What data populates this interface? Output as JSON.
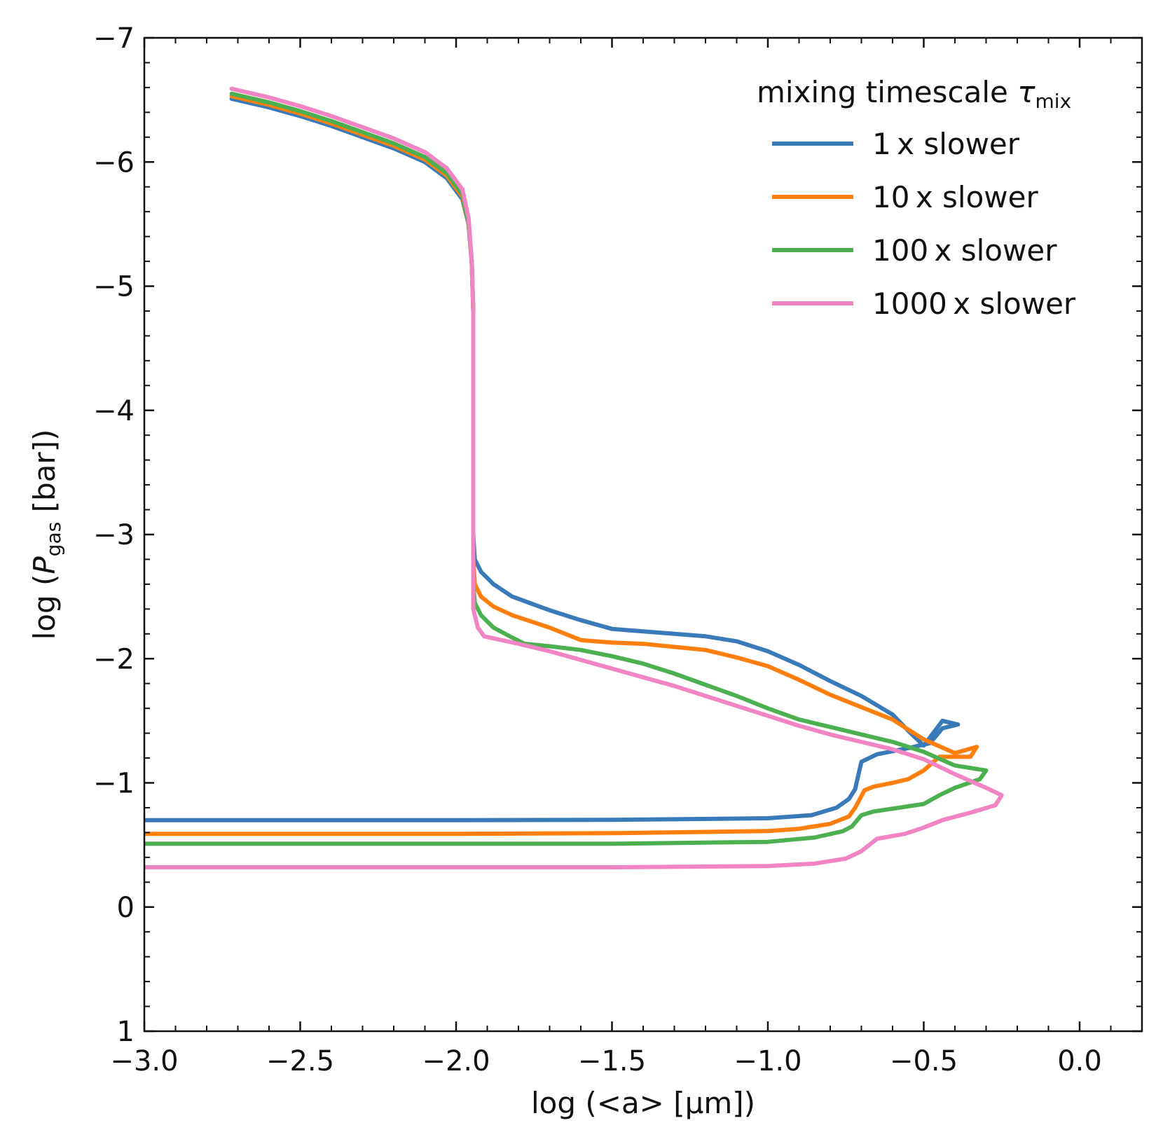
{
  "chart_data": {
    "type": "line",
    "xlabel": "log (<a> [μm])",
    "ylabel": "log (P_gas [bar])",
    "ylabel_parts": {
      "prefix": "log (",
      "symbol": "P",
      "subscript": "gas",
      "suffix": " [bar])"
    },
    "xlim": [
      -3.0,
      0.2
    ],
    "ylim": [
      1,
      -7
    ],
    "y_inverted": true,
    "x_ticks": [
      -3.0,
      -2.5,
      -2.0,
      -1.5,
      -1.0,
      -0.5,
      0.0
    ],
    "x_tick_labels": [
      "−3.0",
      "−2.5",
      "−2.0",
      "−1.5",
      "−1.0",
      "−0.5",
      "0.0"
    ],
    "x_minor_step": 0.1,
    "y_ticks": [
      -7,
      -6,
      -5,
      -4,
      -3,
      -2,
      -1,
      0,
      1
    ],
    "y_tick_labels": [
      "−7",
      "−6",
      "−5",
      "−4",
      "−3",
      "−2",
      "−1",
      "0",
      "1"
    ],
    "y_minor_step": 0.2,
    "grid": false,
    "legend": {
      "title": "mixing timescale",
      "title_symbol": "τ",
      "title_subscript": "mix",
      "placement": "top-right"
    },
    "series": [
      {
        "name": "1 x slower",
        "color": "#3a7ab8",
        "points": [
          [
            -2.72,
            -6.51
          ],
          [
            -2.6,
            -6.44
          ],
          [
            -2.5,
            -6.37
          ],
          [
            -2.4,
            -6.29
          ],
          [
            -2.3,
            -6.2
          ],
          [
            -2.2,
            -6.11
          ],
          [
            -2.1,
            -6.0
          ],
          [
            -2.03,
            -5.87
          ],
          [
            -1.98,
            -5.7
          ],
          [
            -1.96,
            -5.5
          ],
          [
            -1.95,
            -5.2
          ],
          [
            -1.945,
            -4.8
          ],
          [
            -1.945,
            -3.0
          ],
          [
            -1.94,
            -2.8
          ],
          [
            -1.92,
            -2.7
          ],
          [
            -1.88,
            -2.6
          ],
          [
            -1.82,
            -2.5
          ],
          [
            -1.7,
            -2.39
          ],
          [
            -1.6,
            -2.31
          ],
          [
            -1.5,
            -2.24
          ],
          [
            -1.4,
            -2.22
          ],
          [
            -1.2,
            -2.18
          ],
          [
            -1.1,
            -2.14
          ],
          [
            -1.0,
            -2.06
          ],
          [
            -0.9,
            -1.95
          ],
          [
            -0.8,
            -1.82
          ],
          [
            -0.7,
            -1.7
          ],
          [
            -0.6,
            -1.55
          ],
          [
            -0.55,
            -1.42
          ],
          [
            -0.5,
            -1.3
          ],
          [
            -0.44,
            -1.5
          ],
          [
            -0.39,
            -1.47
          ],
          [
            -0.44,
            -1.44
          ],
          [
            -0.48,
            -1.32
          ],
          [
            -0.55,
            -1.28
          ],
          [
            -0.65,
            -1.23
          ],
          [
            -0.7,
            -1.17
          ],
          [
            -0.71,
            -1.06
          ],
          [
            -0.72,
            -0.95
          ],
          [
            -0.74,
            -0.87
          ],
          [
            -0.78,
            -0.8
          ],
          [
            -0.86,
            -0.74
          ],
          [
            -1.0,
            -0.715
          ],
          [
            -1.5,
            -0.702
          ],
          [
            -2.0,
            -0.7
          ],
          [
            -3.0,
            -0.7
          ]
        ]
      },
      {
        "name": "10 x slower",
        "color": "#ff7f0e",
        "points": [
          [
            -2.72,
            -6.53
          ],
          [
            -2.6,
            -6.46
          ],
          [
            -2.5,
            -6.39
          ],
          [
            -2.4,
            -6.31
          ],
          [
            -2.3,
            -6.22
          ],
          [
            -2.2,
            -6.13
          ],
          [
            -2.1,
            -6.02
          ],
          [
            -2.03,
            -5.89
          ],
          [
            -1.98,
            -5.72
          ],
          [
            -1.96,
            -5.5
          ],
          [
            -1.95,
            -5.2
          ],
          [
            -1.945,
            -4.8
          ],
          [
            -1.945,
            -2.8
          ],
          [
            -1.94,
            -2.6
          ],
          [
            -1.92,
            -2.5
          ],
          [
            -1.88,
            -2.42
          ],
          [
            -1.82,
            -2.35
          ],
          [
            -1.7,
            -2.25
          ],
          [
            -1.6,
            -2.15
          ],
          [
            -1.5,
            -2.13
          ],
          [
            -1.4,
            -2.12
          ],
          [
            -1.2,
            -2.07
          ],
          [
            -1.1,
            -2.01
          ],
          [
            -1.0,
            -1.94
          ],
          [
            -0.9,
            -1.83
          ],
          [
            -0.8,
            -1.71
          ],
          [
            -0.7,
            -1.61
          ],
          [
            -0.6,
            -1.51
          ],
          [
            -0.5,
            -1.35
          ],
          [
            -0.4,
            -1.24
          ],
          [
            -0.33,
            -1.29
          ],
          [
            -0.35,
            -1.21
          ],
          [
            -0.45,
            -1.21
          ],
          [
            -0.5,
            -1.1
          ],
          [
            -0.55,
            -1.03
          ],
          [
            -0.6,
            -1.0
          ],
          [
            -0.66,
            -0.97
          ],
          [
            -0.69,
            -0.94
          ],
          [
            -0.72,
            -0.8
          ],
          [
            -0.74,
            -0.73
          ],
          [
            -0.8,
            -0.67
          ],
          [
            -0.9,
            -0.63
          ],
          [
            -1.0,
            -0.612
          ],
          [
            -1.5,
            -0.595
          ],
          [
            -2.0,
            -0.59
          ],
          [
            -3.0,
            -0.59
          ]
        ]
      },
      {
        "name": "100 x slower",
        "color": "#4caf50",
        "points": [
          [
            -2.72,
            -6.55
          ],
          [
            -2.6,
            -6.48
          ],
          [
            -2.5,
            -6.41
          ],
          [
            -2.4,
            -6.33
          ],
          [
            -2.3,
            -6.24
          ],
          [
            -2.2,
            -6.15
          ],
          [
            -2.1,
            -6.04
          ],
          [
            -2.03,
            -5.91
          ],
          [
            -1.98,
            -5.74
          ],
          [
            -1.96,
            -5.5
          ],
          [
            -1.95,
            -5.2
          ],
          [
            -1.945,
            -4.8
          ],
          [
            -1.945,
            -2.6
          ],
          [
            -1.94,
            -2.45
          ],
          [
            -1.92,
            -2.35
          ],
          [
            -1.88,
            -2.25
          ],
          [
            -1.82,
            -2.17
          ],
          [
            -1.78,
            -2.12
          ],
          [
            -1.7,
            -2.1
          ],
          [
            -1.6,
            -2.07
          ],
          [
            -1.5,
            -2.02
          ],
          [
            -1.4,
            -1.96
          ],
          [
            -1.3,
            -1.88
          ],
          [
            -1.2,
            -1.79
          ],
          [
            -1.1,
            -1.7
          ],
          [
            -1.0,
            -1.6
          ],
          [
            -0.9,
            -1.51
          ],
          [
            -0.8,
            -1.45
          ],
          [
            -0.7,
            -1.39
          ],
          [
            -0.6,
            -1.33
          ],
          [
            -0.5,
            -1.25
          ],
          [
            -0.4,
            -1.14
          ],
          [
            -0.3,
            -1.1
          ],
          [
            -0.32,
            -1.03
          ],
          [
            -0.4,
            -0.96
          ],
          [
            -0.45,
            -0.9
          ],
          [
            -0.5,
            -0.83
          ],
          [
            -0.58,
            -0.8
          ],
          [
            -0.66,
            -0.77
          ],
          [
            -0.7,
            -0.74
          ],
          [
            -0.73,
            -0.65
          ],
          [
            -0.76,
            -0.61
          ],
          [
            -0.85,
            -0.56
          ],
          [
            -1.0,
            -0.525
          ],
          [
            -1.5,
            -0.51
          ],
          [
            -2.0,
            -0.51
          ],
          [
            -3.0,
            -0.51
          ]
        ]
      },
      {
        "name": "1000 x slower",
        "color": "#f184c2",
        "points": [
          [
            -2.72,
            -6.59
          ],
          [
            -2.6,
            -6.52
          ],
          [
            -2.5,
            -6.45
          ],
          [
            -2.4,
            -6.37
          ],
          [
            -2.3,
            -6.28
          ],
          [
            -2.2,
            -6.19
          ],
          [
            -2.1,
            -6.08
          ],
          [
            -2.03,
            -5.95
          ],
          [
            -1.98,
            -5.78
          ],
          [
            -1.96,
            -5.55
          ],
          [
            -1.95,
            -5.2
          ],
          [
            -1.945,
            -4.8
          ],
          [
            -1.945,
            -2.4
          ],
          [
            -1.93,
            -2.25
          ],
          [
            -1.91,
            -2.18
          ],
          [
            -1.8,
            -2.12
          ],
          [
            -1.7,
            -2.06
          ],
          [
            -1.6,
            -1.99
          ],
          [
            -1.5,
            -1.92
          ],
          [
            -1.4,
            -1.85
          ],
          [
            -1.3,
            -1.78
          ],
          [
            -1.2,
            -1.7
          ],
          [
            -1.1,
            -1.62
          ],
          [
            -1.0,
            -1.54
          ],
          [
            -0.9,
            -1.46
          ],
          [
            -0.8,
            -1.39
          ],
          [
            -0.7,
            -1.33
          ],
          [
            -0.6,
            -1.27
          ],
          [
            -0.5,
            -1.19
          ],
          [
            -0.4,
            -1.07
          ],
          [
            -0.3,
            -0.96
          ],
          [
            -0.25,
            -0.9
          ],
          [
            -0.27,
            -0.82
          ],
          [
            -0.35,
            -0.76
          ],
          [
            -0.44,
            -0.7
          ],
          [
            -0.5,
            -0.64
          ],
          [
            -0.56,
            -0.59
          ],
          [
            -0.65,
            -0.55
          ],
          [
            -0.7,
            -0.45
          ],
          [
            -0.75,
            -0.39
          ],
          [
            -0.85,
            -0.35
          ],
          [
            -1.0,
            -0.33
          ],
          [
            -1.5,
            -0.32
          ],
          [
            -2.0,
            -0.32
          ],
          [
            -3.0,
            -0.32
          ]
        ]
      }
    ]
  }
}
